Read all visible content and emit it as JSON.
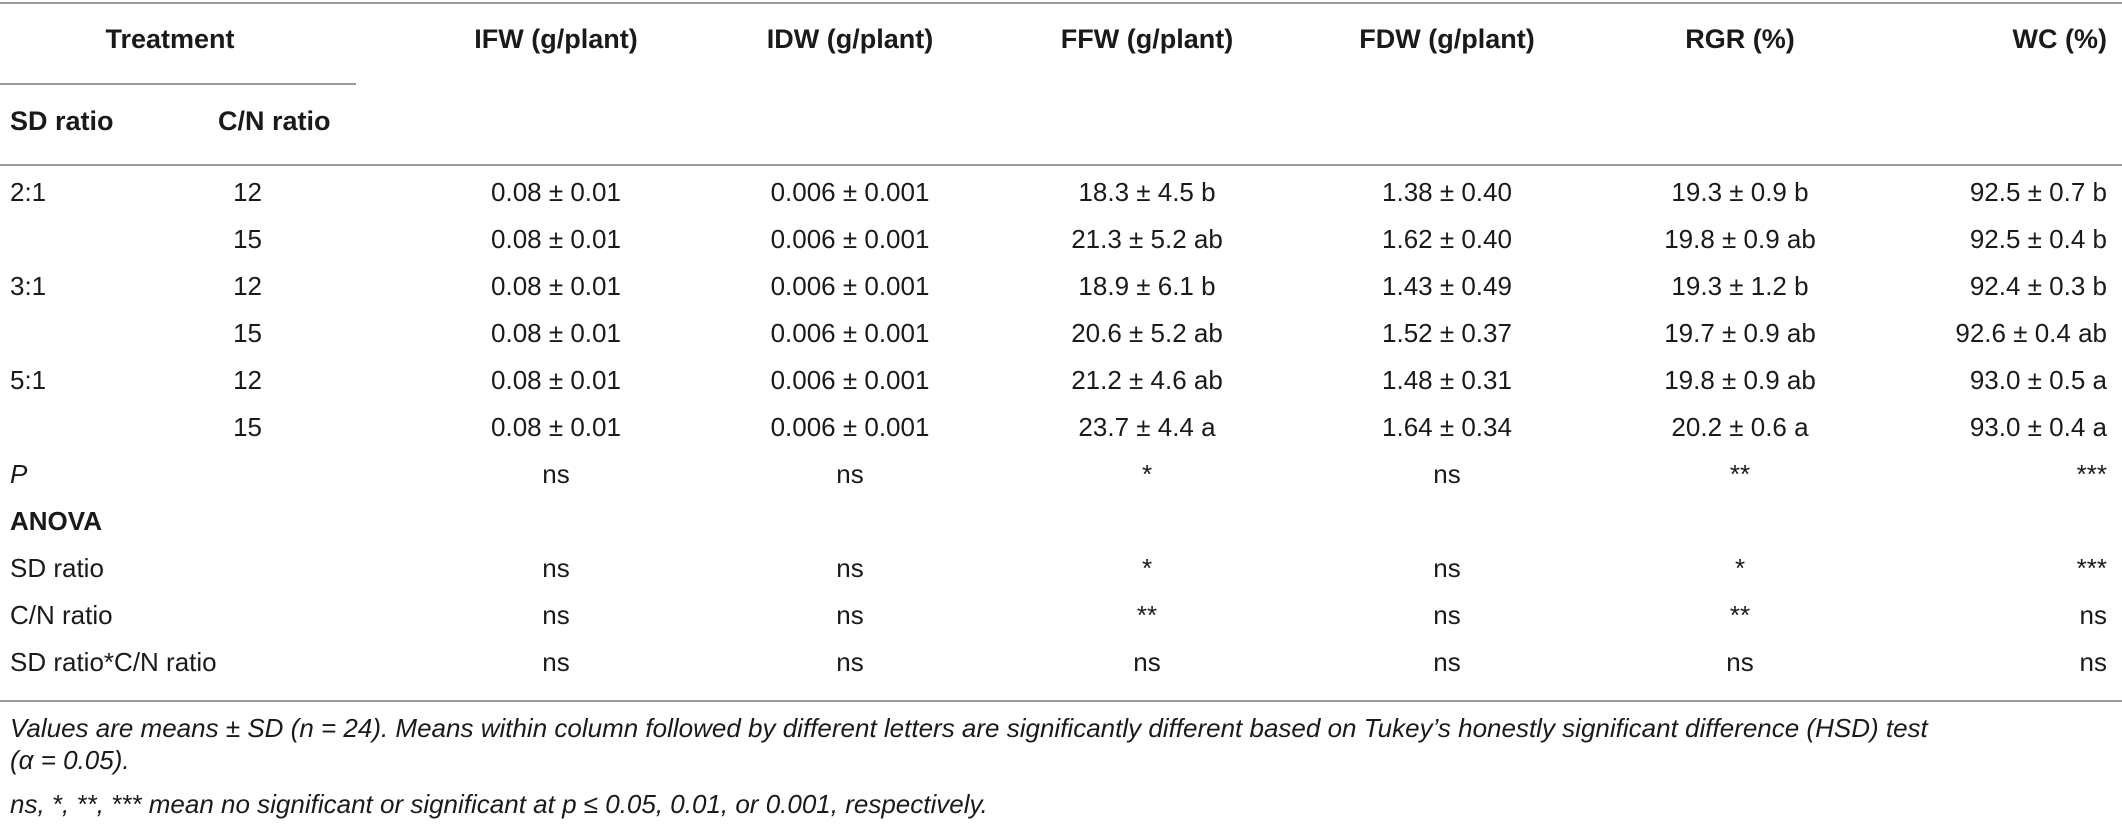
{
  "table": {
    "treatment_header": "Treatment",
    "sub_headers": [
      "SD ratio",
      "C/N ratio"
    ],
    "columns": [
      "IFW (g/plant)",
      "IDW (g/plant)",
      "FFW (g/plant)",
      "FDW (g/plant)",
      "RGR (%)",
      "WC (%)"
    ],
    "rows": [
      {
        "sd": "2:1",
        "cn": "12",
        "values": [
          "0.08 ± 0.01",
          "0.006 ± 0.001",
          "18.3 ± 4.5 b",
          "1.38 ± 0.40",
          "19.3 ± 0.9 b",
          "92.5 ± 0.7 b"
        ]
      },
      {
        "sd": "",
        "cn": "15",
        "values": [
          "0.08 ± 0.01",
          "0.006 ± 0.001",
          "21.3 ± 5.2 ab",
          "1.62 ± 0.40",
          "19.8 ± 0.9 ab",
          "92.5 ± 0.4 b"
        ]
      },
      {
        "sd": "3:1",
        "cn": "12",
        "values": [
          "0.08 ± 0.01",
          "0.006 ± 0.001",
          "18.9 ± 6.1 b",
          "1.43 ± 0.49",
          "19.3 ± 1.2 b",
          "92.4 ± 0.3 b"
        ]
      },
      {
        "sd": "",
        "cn": "15",
        "values": [
          "0.08 ± 0.01",
          "0.006 ± 0.001",
          "20.6 ± 5.2 ab",
          "1.52 ± 0.37",
          "19.7 ± 0.9 ab",
          "92.6 ± 0.4 ab"
        ]
      },
      {
        "sd": "5:1",
        "cn": "12",
        "values": [
          "0.08 ± 0.01",
          "0.006 ± 0.001",
          "21.2 ± 4.6 ab",
          "1.48 ± 0.31",
          "19.8 ± 0.9 ab",
          "93.0 ± 0.5 a"
        ]
      },
      {
        "sd": "",
        "cn": "15",
        "values": [
          "0.08 ± 0.01",
          "0.006 ± 0.001",
          "23.7 ± 4.4 a",
          "1.64 ± 0.34",
          "20.2 ± 0.6 a",
          "93.0 ± 0.4 a"
        ]
      }
    ],
    "p_row": {
      "label": "P",
      "values": [
        "ns",
        "ns",
        "*",
        "ns",
        "**",
        "***"
      ]
    },
    "anova_label": "ANOVA",
    "anova_rows": [
      {
        "label": "SD ratio",
        "values": [
          "ns",
          "ns",
          "*",
          "ns",
          "*",
          "***"
        ]
      },
      {
        "label": "C/N ratio",
        "values": [
          "ns",
          "ns",
          "**",
          "ns",
          "**",
          "ns"
        ]
      },
      {
        "label": "SD ratio*C/N ratio",
        "values": [
          "ns",
          "ns",
          "ns",
          "ns",
          "ns",
          "ns"
        ]
      }
    ]
  },
  "footnotes": {
    "line1": "Values are means ± SD (n = 24). Means within column followed by different letters are significantly different based on Tukey’s honestly significant difference (HSD) test",
    "line2": "(α = 0.05).",
    "line3": "ns, *, **, *** mean no significant or significant at p ≤ 0.05, 0.01, or 0.001, respectively."
  }
}
